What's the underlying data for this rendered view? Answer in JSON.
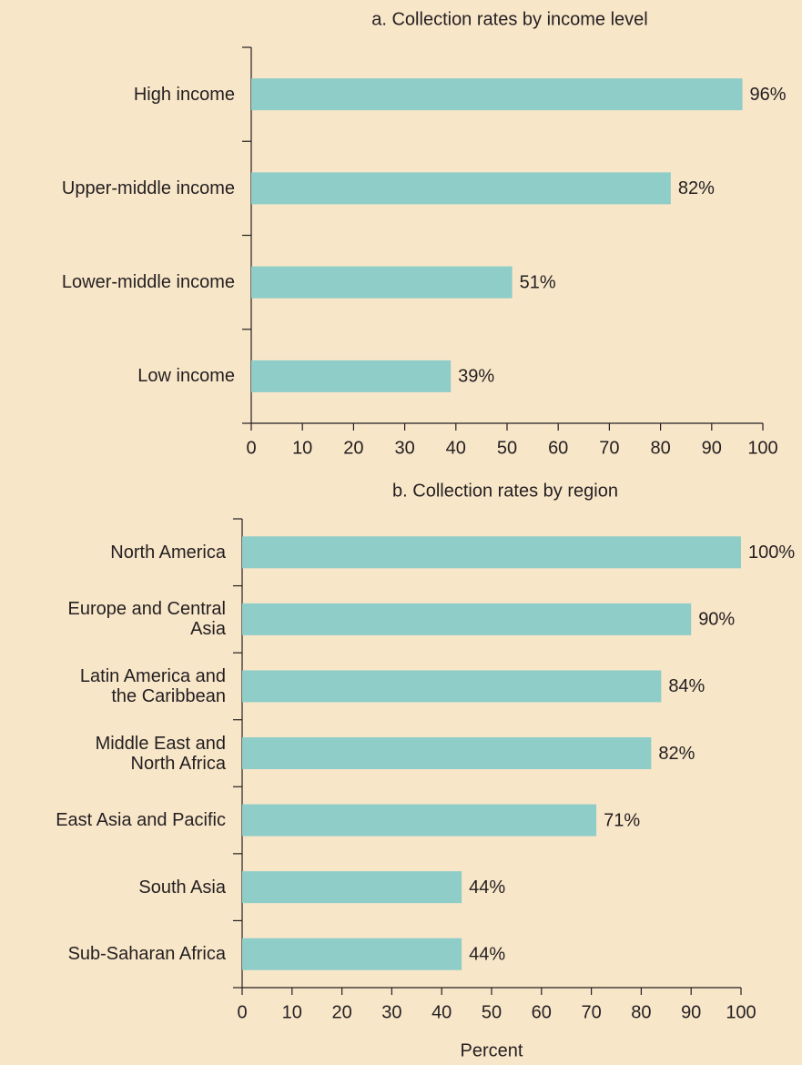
{
  "chart_data": [
    {
      "type": "bar",
      "orientation": "horizontal",
      "title": "a. Collection rates by income level",
      "categories": [
        "High income",
        "Upper-middle income",
        "Lower-middle income",
        "Low income"
      ],
      "values": [
        96,
        82,
        51,
        39
      ],
      "value_labels": [
        "96%",
        "82%",
        "51%",
        "39%"
      ],
      "color": "#8ecdc8",
      "xlim": [
        0,
        100
      ],
      "xticks": [
        0,
        10,
        20,
        30,
        40,
        50,
        60,
        70,
        80,
        90,
        100
      ]
    },
    {
      "type": "bar",
      "orientation": "horizontal",
      "title": "b. Collection rates by region",
      "categories": [
        "North America",
        "Europe and Central\nAsia",
        "Latin America and\nthe Caribbean",
        "Middle East and\nNorth Africa",
        "East Asia and Pacific",
        "South Asia",
        "Sub-Saharan Africa"
      ],
      "values": [
        100,
        90,
        84,
        82,
        71,
        44,
        44
      ],
      "value_labels": [
        "100%",
        "90%",
        "84%",
        "82%",
        "71%",
        "44%",
        "44%"
      ],
      "color": "#8ecdc8",
      "xlim": [
        0,
        100
      ],
      "xticks": [
        0,
        10,
        20,
        30,
        40,
        50,
        60,
        70,
        80,
        90,
        100
      ],
      "x_label": "Percent"
    }
  ]
}
